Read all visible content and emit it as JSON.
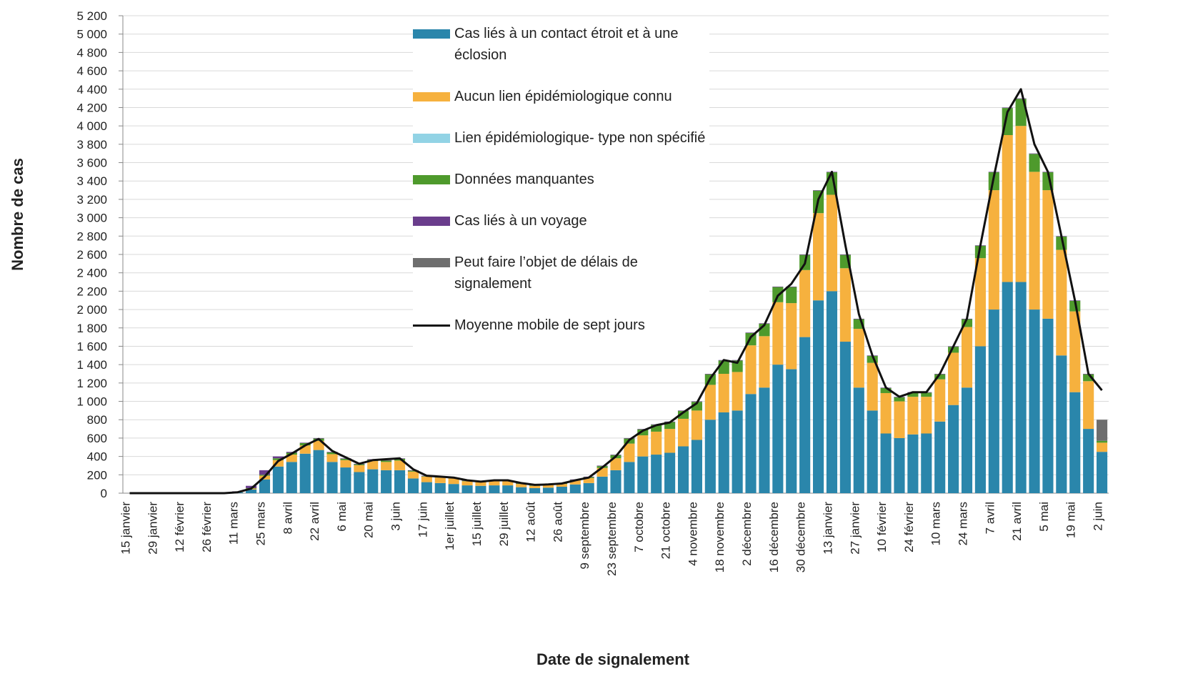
{
  "chart_data": {
    "type": "bar",
    "ylabel": "Nombre de cas",
    "xlabel": "Date de signalement",
    "stacked": true,
    "grid": true,
    "legend": "top",
    "categories": [
      "15 janvier",
      null,
      "29 janvier",
      null,
      "12 février",
      null,
      "26 février",
      null,
      "11 mars",
      null,
      "25 mars",
      null,
      "8 avril",
      null,
      "22 avril",
      null,
      "6 mai",
      null,
      "20 mai",
      null,
      "3 juin",
      null,
      "17 juin",
      null,
      "1er juillet",
      null,
      "15 juillet",
      null,
      "29 juillet",
      null,
      "12 août",
      null,
      "26 août",
      null,
      "9 septembre",
      null,
      "23 septembre",
      null,
      "7 octobre",
      null,
      "21 octobre",
      null,
      "4 novembre",
      null,
      "18 novembre",
      null,
      "2 décembre",
      null,
      "16 décembre",
      null,
      "30 décembre",
      null,
      "13 janvier",
      null,
      "27 janvier",
      null,
      "10 février",
      null,
      "24 février",
      null,
      "10 mars",
      null,
      "24 mars",
      null,
      "7 avril",
      null,
      "21 avril",
      null,
      "5 mai",
      null,
      "19 mai",
      null,
      "2 juin"
    ],
    "ylim": [
      0,
      5200
    ],
    "yticks": [
      0,
      200,
      400,
      600,
      800,
      {
        "value": 1000,
        "label": "1 000"
      },
      {
        "value": 1200,
        "label": "1 200"
      },
      {
        "value": 1400,
        "label": "1 400"
      },
      {
        "value": 1600,
        "label": "1 600"
      },
      {
        "value": 1800,
        "label": "1 800"
      },
      {
        "value": 2000,
        "label": "2 000"
      },
      {
        "value": 2200,
        "label": "2 200"
      },
      {
        "value": 2400,
        "label": "2 400"
      },
      {
        "value": 2600,
        "label": "2 600"
      },
      {
        "value": 2800,
        "label": "2 800"
      },
      {
        "value": 3000,
        "label": "3 000"
      },
      {
        "value": 3200,
        "label": "3 200"
      },
      {
        "value": 3400,
        "label": "3 400"
      },
      {
        "value": 3600,
        "label": "3 600"
      },
      {
        "value": 3800,
        "label": "3 800"
      },
      {
        "value": 4000,
        "label": "4 000"
      },
      {
        "value": 4200,
        "label": "4 200"
      },
      {
        "value": 4400,
        "label": "4 400"
      },
      {
        "value": 4600,
        "label": "4 600"
      },
      {
        "value": 4800,
        "label": "4 800"
      },
      {
        "value": 5000,
        "label": "5 000"
      },
      {
        "value": 5200,
        "label": "5 200"
      }
    ],
    "series": [
      {
        "name": "Cas liés à un contact étroit et à une éclosion",
        "color": "#2a86ab",
        "values": [
          0,
          0,
          0,
          0,
          0,
          0,
          0,
          0,
          10,
          40,
          150,
          290,
          340,
          430,
          470,
          340,
          280,
          230,
          260,
          250,
          250,
          160,
          120,
          110,
          100,
          85,
          80,
          85,
          85,
          65,
          55,
          60,
          70,
          95,
          110,
          180,
          250,
          340,
          400,
          420,
          440,
          510,
          580,
          800,
          880,
          900,
          1080,
          1150,
          1400,
          1350,
          1700,
          2100,
          2200,
          1650,
          1150,
          900,
          650,
          600,
          640,
          650,
          780,
          960,
          1150,
          1600,
          2000,
          2300,
          2300,
          2000,
          1900,
          1500,
          1100,
          700,
          450
        ]
      },
      {
        "name": "Aucun lien épidémiologique connu",
        "color": "#f6b13e",
        "values": [
          0,
          0,
          0,
          0,
          0,
          0,
          0,
          0,
          5,
          10,
          40,
          70,
          80,
          90,
          100,
          85,
          80,
          75,
          90,
          90,
          105,
          75,
          60,
          60,
          60,
          45,
          40,
          45,
          45,
          35,
          25,
          30,
          30,
          45,
          55,
          95,
          130,
          200,
          230,
          250,
          260,
          300,
          320,
          380,
          420,
          420,
          530,
          560,
          680,
          720,
          730,
          950,
          1050,
          800,
          640,
          520,
          440,
          400,
          410,
          400,
          460,
          570,
          660,
          960,
          1300,
          1600,
          1700,
          1500,
          1400,
          1150,
          880,
          520,
          100
        ]
      },
      {
        "name": "Lien épidémiologique- type non spécifié",
        "color": "#92d3e5",
        "values": [
          0,
          0,
          0,
          0,
          0,
          0,
          0,
          0,
          0,
          0,
          0,
          0,
          0,
          0,
          0,
          0,
          0,
          0,
          0,
          0,
          0,
          0,
          0,
          0,
          0,
          0,
          0,
          0,
          0,
          0,
          0,
          0,
          0,
          0,
          0,
          0,
          0,
          0,
          0,
          0,
          0,
          0,
          0,
          0,
          0,
          0,
          0,
          0,
          0,
          0,
          0,
          0,
          0,
          0,
          0,
          0,
          0,
          0,
          0,
          0,
          0,
          0,
          0,
          0,
          0,
          0,
          0,
          0,
          0,
          0,
          0,
          0,
          0
        ]
      },
      {
        "name": "Données manquantes",
        "color": "#4e9a2c",
        "values": [
          0,
          0,
          0,
          0,
          0,
          0,
          0,
          0,
          0,
          5,
          10,
          20,
          20,
          25,
          25,
          20,
          15,
          10,
          15,
          15,
          20,
          10,
          5,
          5,
          5,
          5,
          5,
          5,
          5,
          5,
          5,
          5,
          5,
          5,
          10,
          20,
          35,
          55,
          65,
          75,
          75,
          85,
          95,
          115,
          145,
          125,
          135,
          135,
          165,
          175,
          165,
          245,
          245,
          145,
          105,
          75,
          55,
          45,
          45,
          45,
          55,
          65,
          85,
          135,
          195,
          295,
          295,
          195,
          195,
          145,
          115,
          75,
          20
        ]
      },
      {
        "name": "Cas liés à un voyage",
        "color": "#6a3d8c",
        "values": [
          0,
          0,
          0,
          0,
          0,
          0,
          0,
          0,
          5,
          25,
          50,
          20,
          10,
          5,
          5,
          5,
          5,
          5,
          5,
          5,
          5,
          5,
          5,
          5,
          5,
          5,
          5,
          5,
          5,
          5,
          5,
          5,
          5,
          5,
          5,
          5,
          5,
          5,
          5,
          5,
          5,
          5,
          5,
          5,
          5,
          5,
          5,
          5,
          5,
          5,
          5,
          5,
          5,
          5,
          5,
          5,
          5,
          5,
          5,
          5,
          5,
          5,
          5,
          5,
          5,
          5,
          5,
          5,
          5,
          5,
          5,
          5,
          0
        ]
      },
      {
        "name": "Peut faire l’objet de délais de signalement",
        "color": "#6e6e6e",
        "values": [
          0,
          0,
          0,
          0,
          0,
          0,
          0,
          0,
          0,
          0,
          0,
          0,
          0,
          0,
          0,
          0,
          0,
          0,
          0,
          0,
          0,
          0,
          0,
          0,
          0,
          0,
          0,
          0,
          0,
          0,
          0,
          0,
          0,
          0,
          0,
          0,
          0,
          0,
          0,
          0,
          0,
          0,
          0,
          0,
          0,
          0,
          0,
          0,
          0,
          0,
          0,
          0,
          0,
          0,
          0,
          0,
          0,
          0,
          0,
          0,
          0,
          0,
          0,
          0,
          0,
          0,
          0,
          0,
          0,
          0,
          0,
          0,
          230
        ]
      },
      {
        "name": "Moyenne mobile de sept jours",
        "color": "#111111",
        "type": "line",
        "values": [
          0,
          0,
          0,
          0,
          0,
          0,
          0,
          0,
          10,
          50,
          180,
          350,
          430,
          520,
          590,
          460,
          390,
          320,
          360,
          370,
          380,
          260,
          190,
          180,
          170,
          140,
          125,
          140,
          140,
          110,
          90,
          95,
          105,
          140,
          170,
          280,
          400,
          580,
          680,
          740,
          770,
          880,
          980,
          1250,
          1450,
          1420,
          1700,
          1830,
          2150,
          2280,
          2500,
          3200,
          3500,
          2700,
          1950,
          1500,
          1150,
          1050,
          1100,
          1100,
          1300,
          1600,
          1900,
          2700,
          3450,
          4150,
          4400,
          3800,
          3500,
          2800,
          2100,
          1300,
          1120
        ]
      }
    ]
  }
}
